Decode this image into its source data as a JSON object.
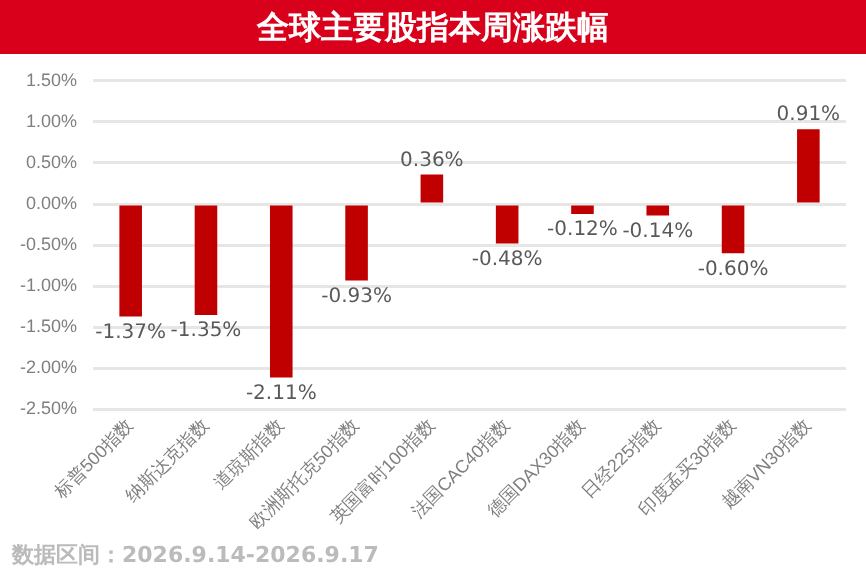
{
  "chart_data": {
    "type": "bar",
    "title": "全球主要股指本周涨跌幅",
    "categories": [
      "标普500指数",
      "纳斯达克指数",
      "道琼斯指数",
      "欧洲斯托克50指数",
      "英国富时100指数",
      "法国CAC40指数",
      "德国DAX30指数",
      "日经225指数",
      "印度孟买30指数",
      "越南VN30指数"
    ],
    "values": [
      -1.37,
      -1.35,
      -2.11,
      -0.93,
      0.36,
      -0.48,
      -0.12,
      -0.14,
      -0.6,
      0.91
    ],
    "value_labels": [
      "-1.37%",
      "-1.35%",
      "-2.11%",
      "-0.93%",
      "0.36%",
      "-0.48%",
      "-0.12%",
      "-0.14%",
      "-0.60%",
      "0.91%"
    ],
    "color": "#c00000",
    "ylim": [
      -2.5,
      1.5
    ],
    "yticks": [
      {
        "value": -2.5,
        "label": "-2.50%"
      },
      {
        "value": -2,
        "label": "-2.00%"
      },
      {
        "value": -1.5,
        "label": "-1.50%"
      },
      {
        "value": -1,
        "label": "-1.00%"
      },
      {
        "value": -0.5,
        "label": "-0.50%"
      },
      {
        "value": 0,
        "label": "0.00%"
      },
      {
        "value": 0.5,
        "label": "0.50%"
      },
      {
        "value": 1,
        "label": "1.00%"
      },
      {
        "value": 1.5,
        "label": "1.50%"
      }
    ],
    "grid": "y",
    "legend": false,
    "annotations": [
      "数据区间：2026.9.14-2026.9.17"
    ]
  }
}
